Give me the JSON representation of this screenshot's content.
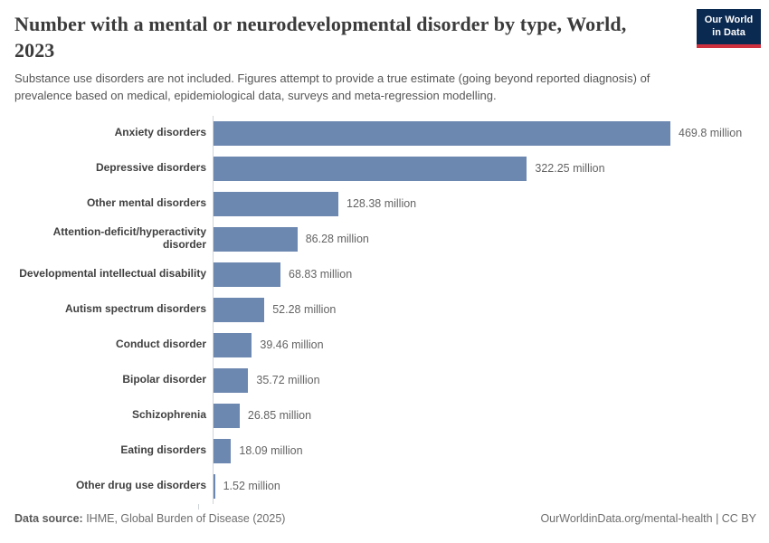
{
  "logo": {
    "line1": "Our World",
    "line2": "in Data",
    "background_color": "#0b2a51",
    "accent_color": "#cf303e"
  },
  "header": {
    "title_line1": "Number with a mental or neurodevelopmental disorder by type, World,",
    "title_line2": "2023",
    "subtitle": "Substance use disorders are not included. Figures attempt to provide a true estimate (going beyond reported diagnosis) of prevalence based on medical, epidemiological data, surveys and meta-regression modelling."
  },
  "chart_data": {
    "type": "bar",
    "orientation": "horizontal",
    "title": "Number with a mental or neurodevelopmental disorder by type, World, 2023",
    "unit": "million",
    "grid": false,
    "bar_color": "#6c87b0",
    "axis_color": "#cfd4da",
    "xlim": [
      0,
      469.8
    ],
    "value_label_position": "end-of-bar",
    "categories": [
      "Anxiety disorders",
      "Depressive disorders",
      "Other mental disorders",
      "Attention-deficit/hyperactivity disorder",
      "Developmental intellectual disability",
      "Autism spectrum disorders",
      "Conduct disorder",
      "Bipolar disorder",
      "Schizophrenia",
      "Eating disorders",
      "Other drug use disorders"
    ],
    "values": [
      469.8,
      322.25,
      128.38,
      86.28,
      68.83,
      52.28,
      39.46,
      35.72,
      26.85,
      18.09,
      1.52
    ],
    "value_labels": [
      "469.8 million",
      "322.25 million",
      "128.38 million",
      "86.28 million",
      "68.83 million",
      "52.28 million",
      "39.46 million",
      "35.72 million",
      "26.85 million",
      "18.09 million",
      "1.52 million"
    ]
  },
  "footer": {
    "datasource_label": "Data source:",
    "datasource_value": " IHME, Global Burden of Disease (2025)",
    "right_text": "OurWorldinData.org/mental-health | CC BY"
  }
}
